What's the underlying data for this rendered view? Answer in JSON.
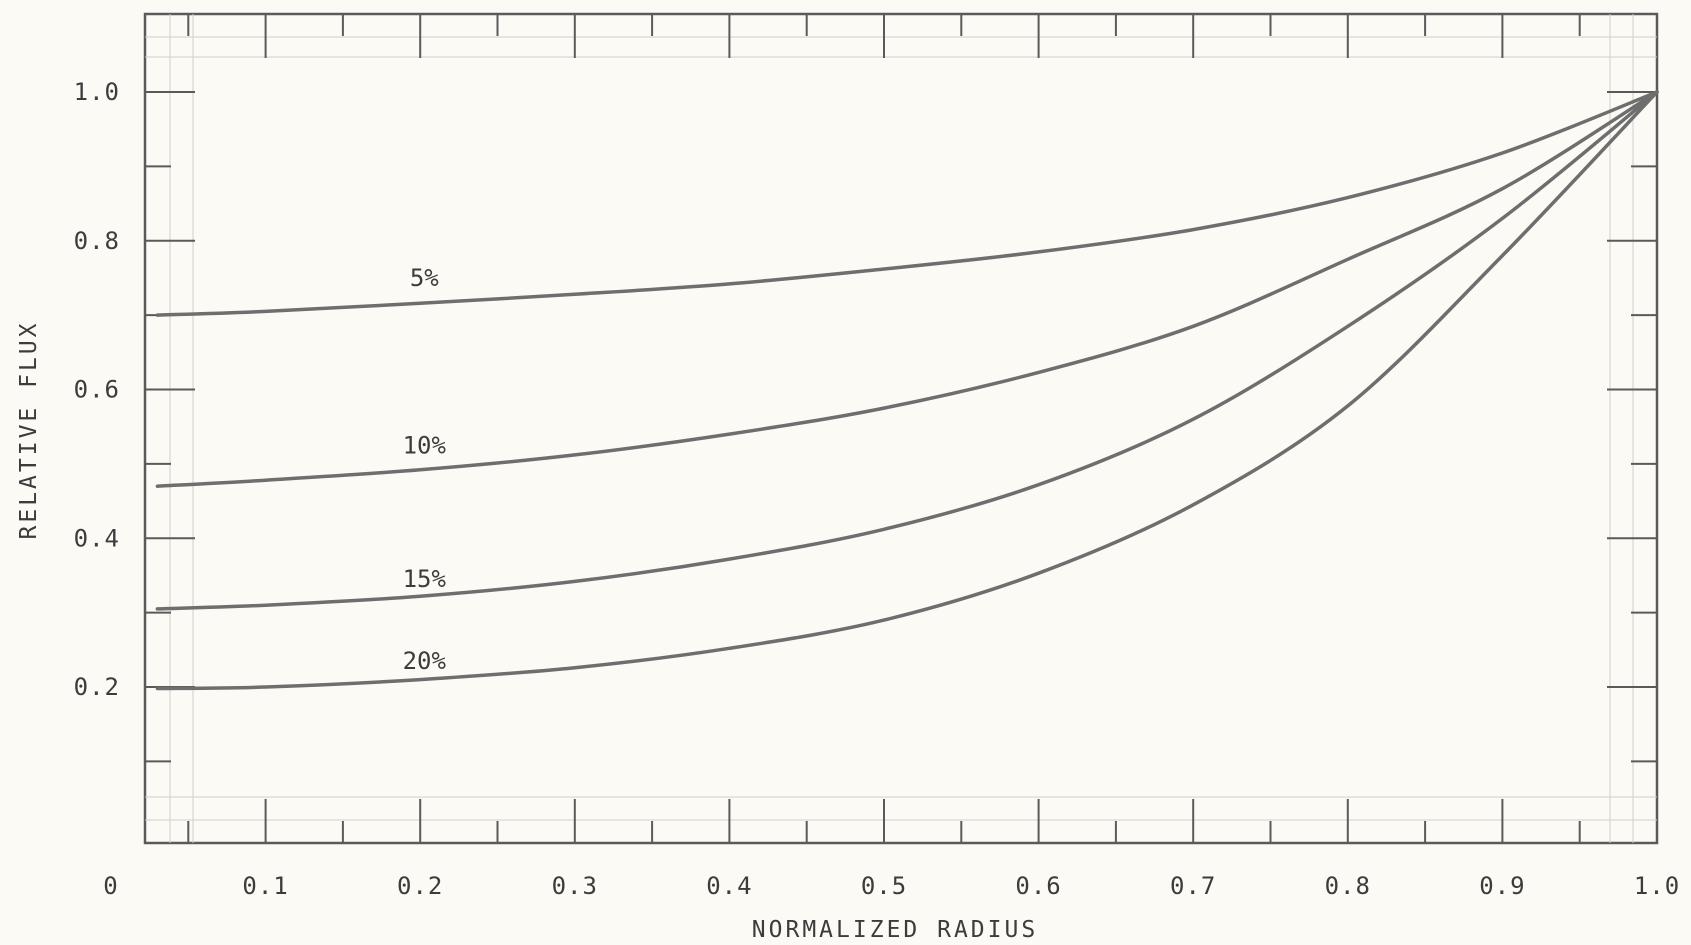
{
  "chart_data": {
    "type": "line",
    "xlabel": "NORMALIZED RADIUS",
    "ylabel": "RELATIVE FLUX",
    "xlim": [
      0,
      1.0
    ],
    "ylim": [
      0,
      1.05
    ],
    "x_ticks": [
      {
        "value": 0,
        "label": "0"
      },
      {
        "value": 0.1,
        "label": "0.1"
      },
      {
        "value": 0.2,
        "label": "0.2"
      },
      {
        "value": 0.3,
        "label": "0.3"
      },
      {
        "value": 0.4,
        "label": "0.4"
      },
      {
        "value": 0.5,
        "label": "0.5"
      },
      {
        "value": 0.6,
        "label": "0.6"
      },
      {
        "value": 0.7,
        "label": "0.7"
      },
      {
        "value": 0.8,
        "label": "0.8"
      },
      {
        "value": 0.9,
        "label": "0.9"
      },
      {
        "value": 1.0,
        "label": "1.0"
      }
    ],
    "y_ticks": [
      {
        "value": 0.2,
        "label": "0.2"
      },
      {
        "value": 0.4,
        "label": "0.4"
      },
      {
        "value": 0.6,
        "label": "0.6"
      },
      {
        "value": 0.8,
        "label": "0.8"
      },
      {
        "value": 1.0,
        "label": "1.0"
      }
    ],
    "grid": false,
    "series": [
      {
        "name": "5%",
        "label_at": [
          0.18,
          0.75
        ],
        "points": [
          [
            0.03,
            0.7
          ],
          [
            0.1,
            0.705
          ],
          [
            0.2,
            0.716
          ],
          [
            0.3,
            0.728
          ],
          [
            0.4,
            0.742
          ],
          [
            0.5,
            0.762
          ],
          [
            0.6,
            0.785
          ],
          [
            0.7,
            0.815
          ],
          [
            0.8,
            0.858
          ],
          [
            0.9,
            0.918
          ],
          [
            1.0,
            1.0
          ]
        ]
      },
      {
        "name": "10%",
        "label_at": [
          0.18,
          0.525
        ],
        "points": [
          [
            0.03,
            0.47
          ],
          [
            0.1,
            0.478
          ],
          [
            0.2,
            0.492
          ],
          [
            0.3,
            0.512
          ],
          [
            0.4,
            0.54
          ],
          [
            0.5,
            0.575
          ],
          [
            0.6,
            0.623
          ],
          [
            0.7,
            0.685
          ],
          [
            0.8,
            0.775
          ],
          [
            0.9,
            0.87
          ],
          [
            1.0,
            1.0
          ]
        ]
      },
      {
        "name": "15%",
        "label_at": [
          0.18,
          0.345
        ],
        "points": [
          [
            0.03,
            0.305
          ],
          [
            0.1,
            0.31
          ],
          [
            0.2,
            0.322
          ],
          [
            0.3,
            0.342
          ],
          [
            0.4,
            0.372
          ],
          [
            0.5,
            0.412
          ],
          [
            0.6,
            0.472
          ],
          [
            0.7,
            0.56
          ],
          [
            0.8,
            0.685
          ],
          [
            0.9,
            0.83
          ],
          [
            1.0,
            1.0
          ]
        ]
      },
      {
        "name": "20%",
        "label_at": [
          0.18,
          0.235
        ],
        "points": [
          [
            0.03,
            0.198
          ],
          [
            0.1,
            0.2
          ],
          [
            0.2,
            0.21
          ],
          [
            0.3,
            0.226
          ],
          [
            0.4,
            0.252
          ],
          [
            0.5,
            0.29
          ],
          [
            0.6,
            0.353
          ],
          [
            0.7,
            0.445
          ],
          [
            0.8,
            0.578
          ],
          [
            0.9,
            0.78
          ],
          [
            1.0,
            1.0
          ]
        ]
      }
    ],
    "colors": {
      "background": "#fbfaf5",
      "line": "#6e6e6e",
      "frame": "#5a5a5a",
      "text": "#3c3c3c"
    }
  }
}
